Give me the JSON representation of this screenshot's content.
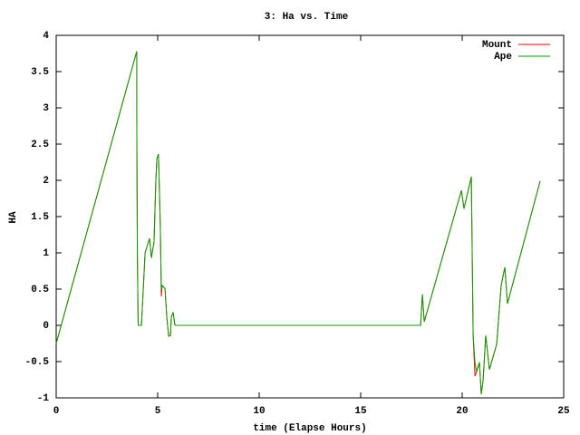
{
  "chart_data": {
    "type": "line",
    "title": "3: Ha vs. Time",
    "x_label": "time (Elapse Hours)",
    "y_label": "HA",
    "x": [
      0,
      3.97,
      3.97,
      4.0,
      4.04,
      4.2,
      4.38,
      4.6,
      4.69,
      4.82,
      4.91,
      4.96,
      5.04,
      5.09,
      5.13,
      5.18,
      5.22,
      5.36,
      5.45,
      5.54,
      5.63,
      5.67,
      5.76,
      5.85,
      17.95,
      18.04,
      18.13,
      19.96,
      20.09,
      20.45,
      20.54,
      20.63,
      20.71,
      20.85,
      20.94,
      21.03,
      21.16,
      21.34,
      21.7,
      21.92,
      22.1,
      22.23,
      23.84
    ],
    "series": [
      {
        "name": "Mount",
        "color": "#ff0000",
        "values": [
          -0.25,
          3.78,
          2.86,
          0.93,
          0,
          0,
          1.0,
          1.2,
          0.93,
          1.15,
          2.0,
          2.3,
          2.36,
          1.8,
          1.36,
          0.4,
          0.55,
          0.51,
          0.11,
          -0.15,
          -0.14,
          0.11,
          0.18,
          0,
          0,
          0.43,
          0.05,
          1.86,
          1.61,
          2.05,
          -0.14,
          -0.7,
          -0.64,
          -0.51,
          -0.95,
          -0.76,
          -0.14,
          -0.61,
          -0.26,
          0.55,
          0.8,
          0.3,
          1.99
        ]
      },
      {
        "name": "Ape",
        "color": "#00a000",
        "values": [
          -0.25,
          3.78,
          2.86,
          0.93,
          0,
          0,
          1.0,
          1.2,
          0.93,
          1.15,
          2.0,
          2.3,
          2.36,
          1.8,
          1.36,
          0.49,
          0.55,
          0.51,
          0.11,
          -0.15,
          -0.14,
          0.11,
          0.18,
          0,
          0,
          0.43,
          0.05,
          1.86,
          1.61,
          2.05,
          -0.14,
          -0.51,
          -0.64,
          -0.51,
          -0.95,
          -0.76,
          -0.14,
          -0.61,
          -0.26,
          0.55,
          0.8,
          0.3,
          1.99
        ]
      }
    ],
    "xlim": [
      0,
      25
    ],
    "xticks": [
      0,
      5,
      10,
      15,
      20,
      25
    ],
    "ylim": [
      -1,
      4
    ],
    "yticks": [
      -1,
      -0.5,
      0,
      0.5,
      1,
      1.5,
      2,
      2.5,
      3,
      3.5,
      4
    ],
    "legend": "top-right"
  }
}
